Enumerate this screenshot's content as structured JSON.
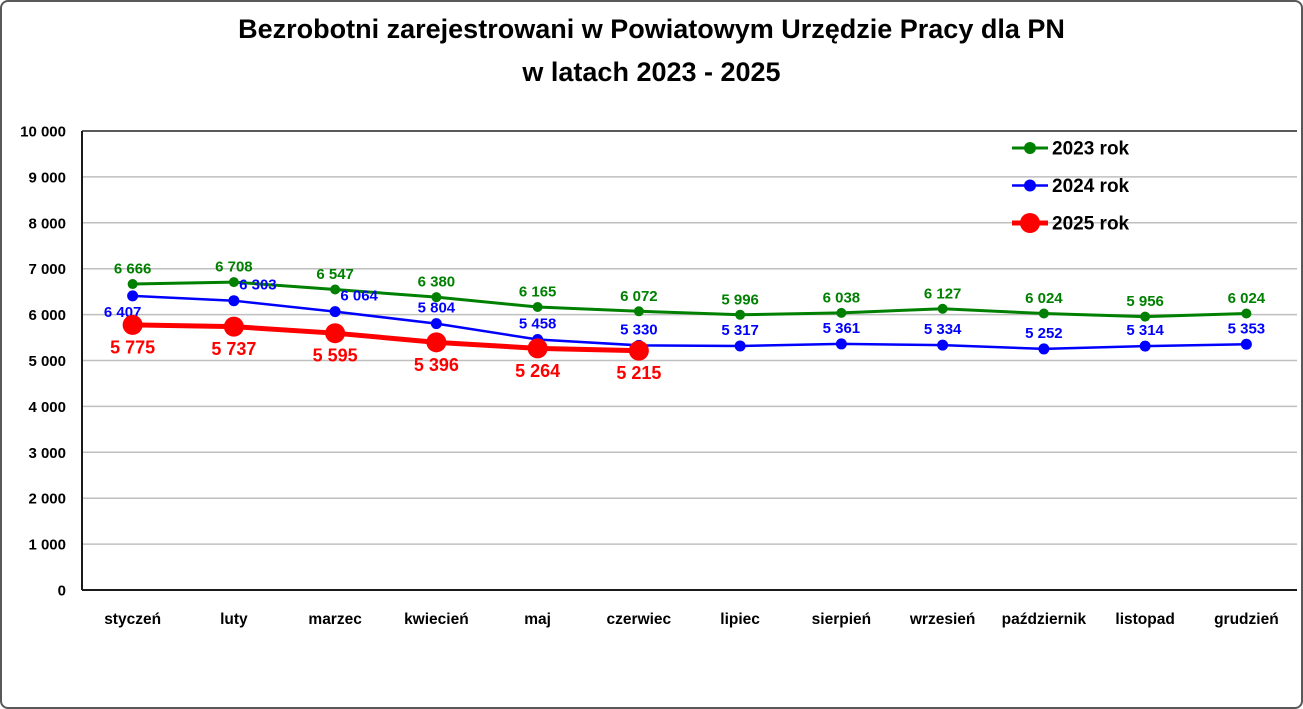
{
  "header": {
    "title_line1": "Bezrobotni zarejestrowani w Powiatowym Urzędzie Pracy dla PN",
    "title_line2": "w latach 2023 - 2025"
  },
  "chart_data": {
    "type": "line",
    "title": "Bezrobotni zarejestrowani w Powiatowym Urzędzie Pracy dla PN w latach 2023 - 2025",
    "categories": [
      "styczeń",
      "luty",
      "marzec",
      "kwiecień",
      "maj",
      "czerwiec",
      "lipiec",
      "sierpień",
      "wrzesień",
      "październik",
      "listopad",
      "grudzień"
    ],
    "series": [
      {
        "name": "2023 rok",
        "color": "#008000",
        "values": [
          6666,
          6708,
          6547,
          6380,
          6165,
          6072,
          5996,
          6038,
          6127,
          6024,
          5956,
          6024
        ],
        "marker_radius": 5,
        "line_width": 3,
        "label_size": 15,
        "label_position": "above",
        "label_overrides": {}
      },
      {
        "name": "2024 rok",
        "color": "#0000ff",
        "values": [
          6407,
          6303,
          6064,
          5804,
          5458,
          5330,
          5317,
          5361,
          5334,
          5252,
          5314,
          5353
        ],
        "marker_radius": 5.5,
        "line_width": 2.5,
        "label_size": 15,
        "label_position": "above",
        "label_overrides": {
          "0": {
            "dx": -10,
            "position": "below"
          },
          "1": {
            "dx": 24
          },
          "2": {
            "dx": 24
          }
        }
      },
      {
        "name": "2025 rok",
        "color": "#ff0000",
        "values": [
          5775,
          5737,
          5595,
          5396,
          5264,
          5215
        ],
        "marker_radius": 10,
        "line_width": 5,
        "label_size": 18,
        "label_position": "below",
        "label_overrides": {}
      }
    ],
    "ylim": [
      0,
      10000
    ],
    "ytick_step": 1000,
    "ytick_labels": [
      "0",
      "1 000",
      "2 000",
      "3 000",
      "4 000",
      "5 000",
      "6 000",
      "7 000",
      "8 000",
      "9 000",
      "10 000"
    ],
    "grid": "horizontal",
    "legend_position": "top-right",
    "axis_color": "#1a1a1a",
    "gridline_color": "#bfbfbf",
    "plot_top_border_color": "#595959",
    "text_color": "#000000"
  }
}
